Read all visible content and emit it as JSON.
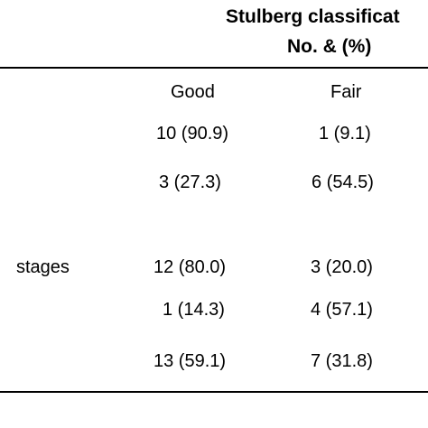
{
  "table": {
    "header": {
      "title": "Stulberg classificat",
      "subtitle": "No. & (%)"
    },
    "columns": [
      "Good",
      "Fair"
    ],
    "rows": [
      {
        "label": "",
        "values": [
          "10 (90.9)",
          "1 (9.1)"
        ]
      },
      {
        "label": "",
        "values": [
          "3 (27.3)",
          "6 (54.5)"
        ]
      },
      {
        "label": "stages",
        "values": [
          "12 (80.0)",
          "3 (20.0)"
        ]
      },
      {
        "label": "",
        "values": [
          "1 (14.3)",
          "4 (57.1)"
        ]
      },
      {
        "label": "",
        "values": [
          "13 (59.1)",
          "7 (31.8)"
        ]
      }
    ]
  }
}
